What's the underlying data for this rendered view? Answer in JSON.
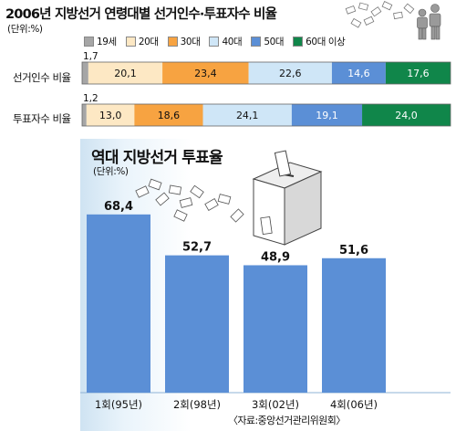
{
  "title": "2006년 지방선거 연령대별 선거인수·투표자수 비율",
  "top_unit": "(단위:%)",
  "bottom_title": "역대 지방선거 투표율",
  "bottom_unit": "(단위:%)",
  "source": "〈자료:중앙선거관리위원회〉",
  "colors": {
    "19세": "#a6a6a6",
    "20대": "#fde8c4",
    "30대": "#f7a341",
    "40대": "#cfe6f7",
    "50대": "#5b8fd6",
    "60대 이상": "#10864a",
    "turnout_bar": "#5b8fd6"
  },
  "chart_data": [
    {
      "type": "bar",
      "stacked": true,
      "orientation": "horizontal",
      "series_order": [
        "19세",
        "20대",
        "30대",
        "40대",
        "50대",
        "60대 이상"
      ],
      "rows": [
        {
          "label": "선거인수 비율",
          "values": [
            1.7,
            20.1,
            23.4,
            22.6,
            14.6,
            17.6
          ],
          "labels": [
            "1,7",
            "20,1",
            "23,4",
            "22,6",
            "14,6",
            "17,6"
          ]
        },
        {
          "label": "투표자수 비율",
          "values": [
            1.2,
            13.0,
            18.6,
            24.1,
            19.1,
            24.0
          ],
          "labels": [
            "1,2",
            "13,0",
            "18,6",
            "24,1",
            "19,1",
            "24,0"
          ]
        }
      ]
    },
    {
      "type": "bar",
      "categories": [
        "1회(95년)",
        "2회(98년)",
        "3회(02년)",
        "4회(06년)"
      ],
      "values": [
        68.4,
        52.7,
        48.9,
        51.6
      ],
      "value_labels": [
        "68,4",
        "52,7",
        "48,9",
        "51,6"
      ],
      "ylim": [
        0,
        75
      ]
    }
  ]
}
